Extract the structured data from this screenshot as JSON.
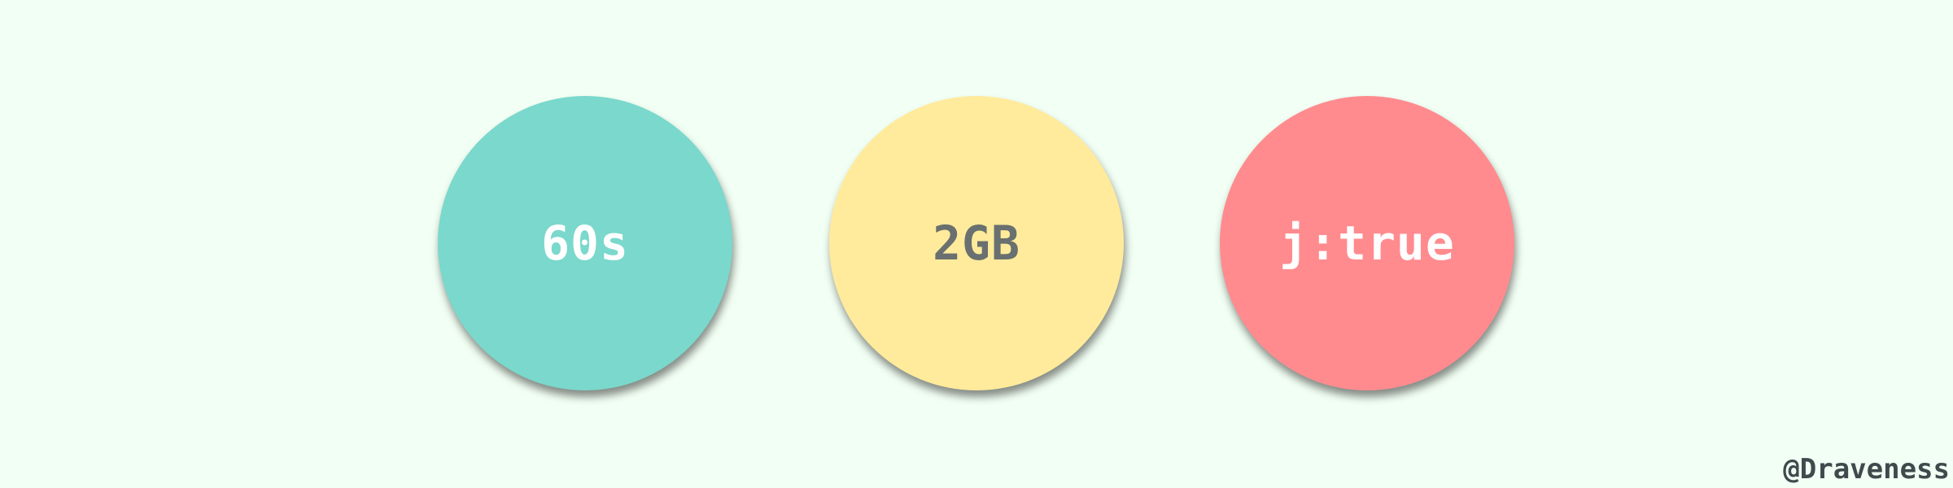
{
  "items": [
    {
      "label": "60s",
      "fill_color": "#7ad8cc",
      "text_color": "#ffffff"
    },
    {
      "label": "2GB",
      "fill_color": "#ffeb9b",
      "text_color": "#69706f"
    },
    {
      "label": "j:true",
      "fill_color": "#ff8b8f",
      "text_color": "#ffffff"
    }
  ],
  "background_color": "#f2fff4",
  "watermark": "@Draveness"
}
